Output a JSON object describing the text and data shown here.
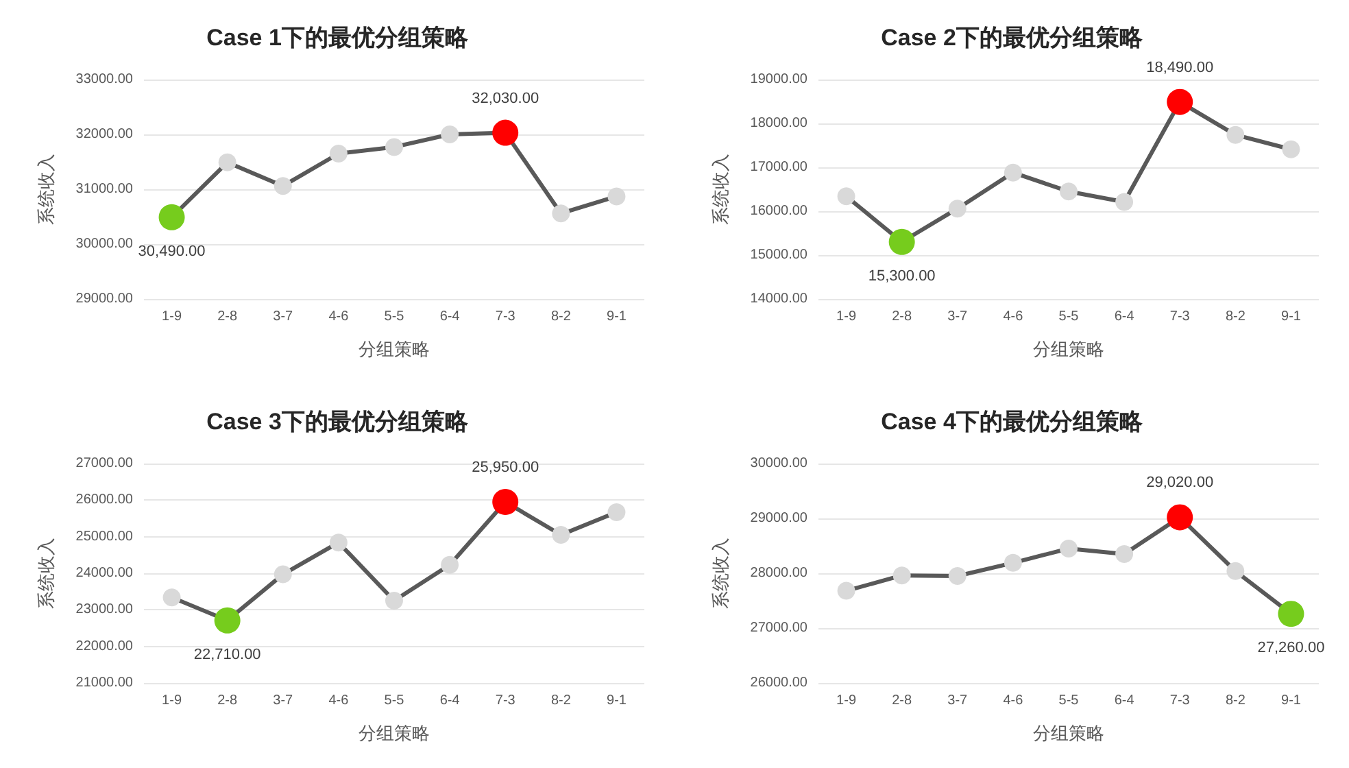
{
  "chart_data": [
    {
      "type": "line",
      "title": "Case 1下的最优分组策略",
      "xlabel": "分组策略",
      "ylabel": "系统收入",
      "categories": [
        "1-9",
        "2-8",
        "3-7",
        "4-6",
        "5-5",
        "6-4",
        "7-3",
        "8-2",
        "9-1"
      ],
      "values": [
        30490,
        31490,
        31060,
        31650,
        31770,
        32000,
        32030,
        30560,
        30870
      ],
      "color": "#595959",
      "colors": [
        "#76cc1d",
        "#d9d9d9",
        "#d9d9d9",
        "#d9d9d9",
        "#d9d9d9",
        "#d9d9d9",
        "#ff0000",
        "#d9d9d9",
        "#d9d9d9"
      ],
      "value_labels": [
        "30,490.00",
        null,
        null,
        null,
        null,
        null,
        "32,030.00",
        null,
        null
      ],
      "ylim": [
        29000,
        33000
      ],
      "yticks": [
        {
          "value": 29000,
          "label": "29000.00"
        },
        {
          "value": 30000,
          "label": "30000.00"
        },
        {
          "value": 31000,
          "label": "31000.00"
        },
        {
          "value": 32000,
          "label": "32000.00"
        },
        {
          "value": 33000,
          "label": "33000.00"
        }
      ],
      "grid": "y",
      "marker": "circle",
      "line_style": "solid"
    },
    {
      "type": "line",
      "title": "Case 2下的最优分组策略",
      "xlabel": "分组策略",
      "ylabel": "系统收入",
      "categories": [
        "1-9",
        "2-8",
        "3-7",
        "4-6",
        "5-5",
        "6-4",
        "7-3",
        "8-2",
        "9-1"
      ],
      "values": [
        16340,
        15300,
        16060,
        16880,
        16450,
        16210,
        18490,
        17740,
        17410
      ],
      "color": "#595959",
      "colors": [
        "#d9d9d9",
        "#76cc1d",
        "#d9d9d9",
        "#d9d9d9",
        "#d9d9d9",
        "#d9d9d9",
        "#ff0000",
        "#d9d9d9",
        "#d9d9d9"
      ],
      "value_labels": [
        null,
        "15,300.00",
        null,
        null,
        null,
        null,
        "18,490.00",
        null,
        null
      ],
      "ylim": [
        14000,
        19000
      ],
      "yticks": [
        {
          "value": 14000,
          "label": "14000.00"
        },
        {
          "value": 15000,
          "label": "15000.00"
        },
        {
          "value": 16000,
          "label": "16000.00"
        },
        {
          "value": 17000,
          "label": "17000.00"
        },
        {
          "value": 18000,
          "label": "18000.00"
        },
        {
          "value": 19000,
          "label": "19000.00"
        }
      ],
      "grid": "y",
      "marker": "circle",
      "line_style": "solid"
    },
    {
      "type": "line",
      "title": "Case 3下的最优分组策略",
      "xlabel": "分组策略",
      "ylabel": "系统收入",
      "categories": [
        "1-9",
        "2-8",
        "3-7",
        "4-6",
        "5-5",
        "6-4",
        "7-3",
        "8-2",
        "9-1"
      ],
      "values": [
        23340,
        22710,
        23970,
        24840,
        23250,
        24230,
        25950,
        25050,
        25670
      ],
      "color": "#595959",
      "colors": [
        "#d9d9d9",
        "#76cc1d",
        "#d9d9d9",
        "#d9d9d9",
        "#d9d9d9",
        "#d9d9d9",
        "#ff0000",
        "#d9d9d9",
        "#d9d9d9"
      ],
      "value_labels": [
        null,
        "22,710.00",
        null,
        null,
        null,
        null,
        "25,950.00",
        null,
        null
      ],
      "ylim": [
        21000,
        27000
      ],
      "yticks": [
        {
          "value": 21000,
          "label": "21000.00"
        },
        {
          "value": 22000,
          "label": "22000.00"
        },
        {
          "value": 23000,
          "label": "23000.00"
        },
        {
          "value": 24000,
          "label": "24000.00"
        },
        {
          "value": 25000,
          "label": "25000.00"
        },
        {
          "value": 26000,
          "label": "26000.00"
        },
        {
          "value": 27000,
          "label": "27000.00"
        }
      ],
      "grid": "y",
      "marker": "circle",
      "line_style": "solid"
    },
    {
      "type": "line",
      "title": "Case 4下的最优分组策略",
      "xlabel": "分组策略",
      "ylabel": "系统收入",
      "categories": [
        "1-9",
        "2-8",
        "3-7",
        "4-6",
        "5-5",
        "6-4",
        "7-3",
        "8-2",
        "9-1"
      ],
      "values": [
        27680,
        27960,
        27950,
        28190,
        28450,
        28350,
        29020,
        28040,
        27260
      ],
      "color": "#595959",
      "colors": [
        "#d9d9d9",
        "#d9d9d9",
        "#d9d9d9",
        "#d9d9d9",
        "#d9d9d9",
        "#d9d9d9",
        "#ff0000",
        "#d9d9d9",
        "#76cc1d"
      ],
      "value_labels": [
        null,
        null,
        null,
        null,
        null,
        null,
        "29,020.00",
        null,
        "27,260.00"
      ],
      "ylim": [
        26000,
        30000
      ],
      "yticks": [
        {
          "value": 26000,
          "label": "26000.00"
        },
        {
          "value": 27000,
          "label": "27000.00"
        },
        {
          "value": 28000,
          "label": "28000.00"
        },
        {
          "value": 29000,
          "label": "29000.00"
        },
        {
          "value": 30000,
          "label": "30000.00"
        }
      ],
      "grid": "y",
      "marker": "circle",
      "line_style": "solid"
    }
  ]
}
